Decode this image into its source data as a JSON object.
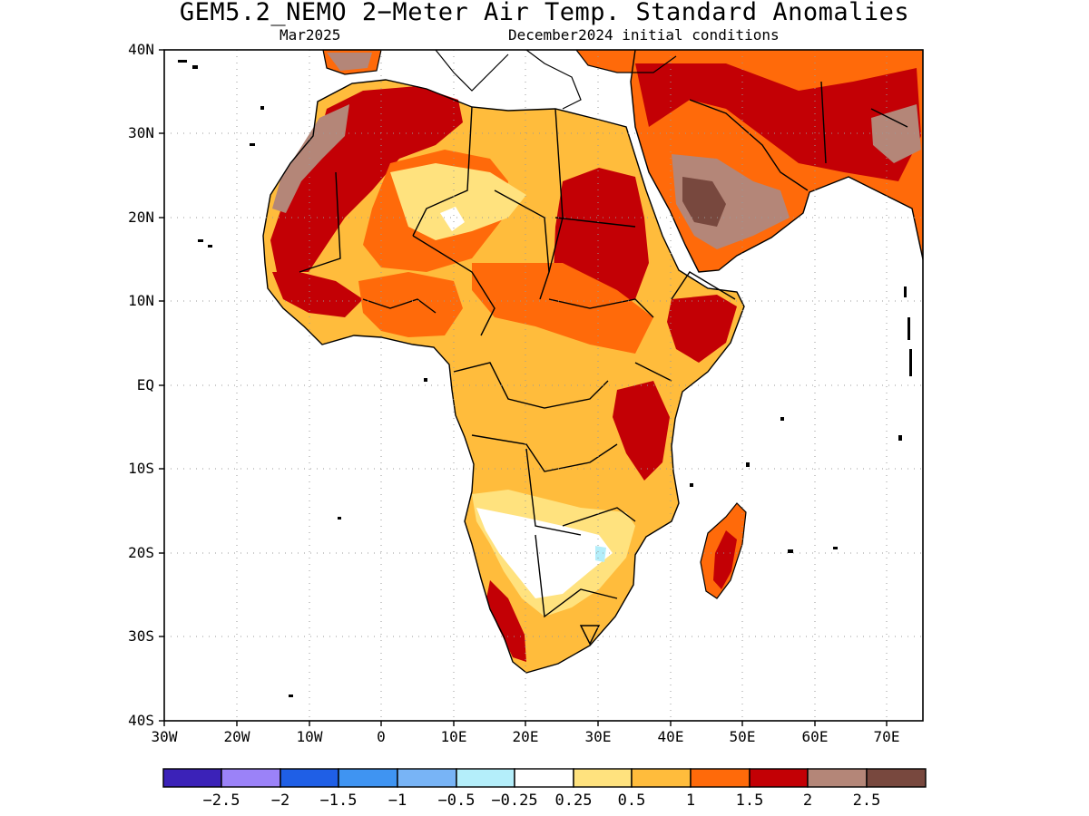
{
  "title": "GEM5.2_NEMO 2−Meter Air Temp. Standard Anomalies",
  "subtitle_left": "Mar2025",
  "subtitle_right": "December2024 initial conditions",
  "map": {
    "lon_range": [
      -30,
      75
    ],
    "lat_range": [
      -40,
      40
    ],
    "ocean_color": "#ffffff",
    "border_color": "#000000",
    "gridlines": "dotted",
    "y_ticks": [
      "40N",
      "30N",
      "20N",
      "10N",
      "EQ",
      "10S",
      "20S",
      "30S",
      "40S"
    ],
    "x_ticks": [
      "30W",
      "20W",
      "10W",
      "0",
      "10E",
      "20E",
      "30E",
      "40E",
      "50E",
      "60E",
      "70E"
    ]
  },
  "colorbar": {
    "colors": [
      "#3b22b8",
      "#9b82f8",
      "#1f5fe6",
      "#3f94f2",
      "#78b4f6",
      "#b4eefa",
      "#ffffff",
      "#ffe27e",
      "#ffbc3c",
      "#ff6a0a",
      "#c30005",
      "#b48678",
      "#78483e"
    ],
    "labels": [
      "−2.5",
      "−2",
      "−1.5",
      "−1",
      "−0.5",
      "−0.25",
      "0.25",
      "0.5",
      "1",
      "1.5",
      "2",
      "2.5"
    ]
  }
}
